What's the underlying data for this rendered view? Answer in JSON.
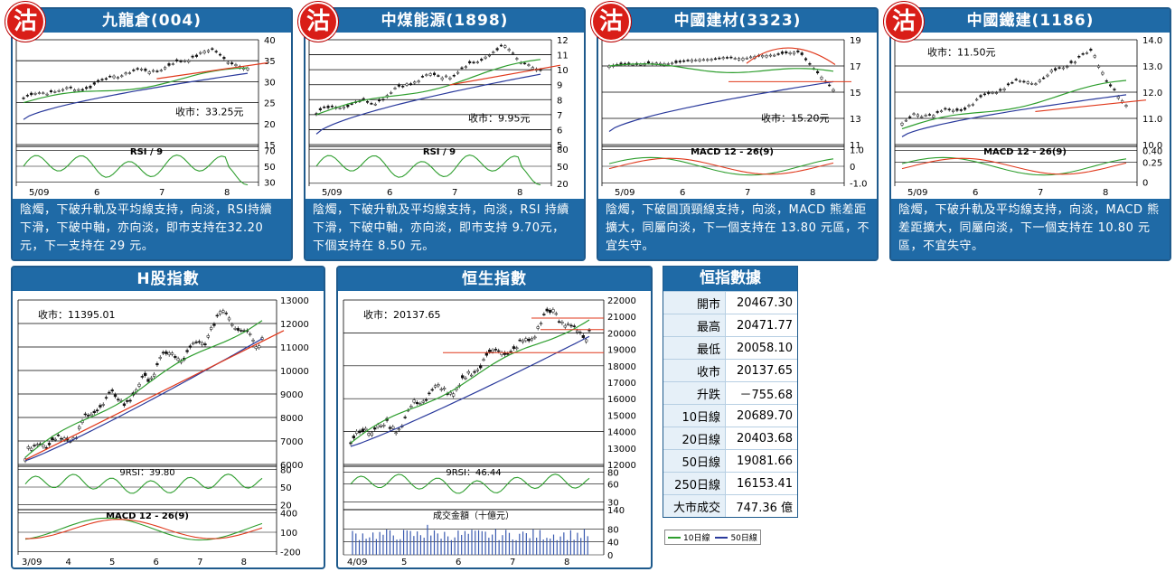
{
  "panels": [
    {
      "id": "p1",
      "title": "九龍倉(004)",
      "badge": "沽",
      "close_label": "收市：33.25元",
      "desc": "陰燭，下破升軌及平均線支持，向淡，RSI持續下滑，下破中軸，亦向淡，即市支持在32.20元，下一支持在 29 元。",
      "x_labels": [
        "5/09",
        "6",
        "7",
        "8"
      ],
      "price": {
        "ticks": [
          40,
          35,
          30,
          25,
          20,
          15
        ],
        "min": 15,
        "max": 40,
        "start": 26,
        "end": 33.25,
        "peak": 37,
        "ma10": [
          25,
          33
        ],
        "ma50": [
          21,
          32
        ],
        "trend": null
      },
      "ind": {
        "name": "RSI / 9",
        "ticks": [
          70,
          50,
          30
        ],
        "min": 25,
        "max": 75,
        "type": "rsi"
      }
    },
    {
      "id": "p2",
      "title": "中煤能源(1898)",
      "badge": "沽",
      "close_label": "收市：9.95元",
      "desc": "陰燭，下破升軌及平均線支持，向淡，RSI 持續下滑，下破中軸，亦向淡，即市支持 9.70元，下個支持在 8.50 元。",
      "x_labels": [
        "5/09",
        "6",
        "7",
        "8"
      ],
      "price": {
        "ticks": [
          12,
          11,
          10,
          9,
          8,
          7,
          6,
          5
        ],
        "min": 5,
        "max": 12,
        "start": 7,
        "end": 9.95,
        "peak": 11.3,
        "ma10": [
          7,
          10.6
        ],
        "ma50": [
          5.7,
          9.7
        ],
        "trend": null
      },
      "ind": {
        "name": "RSI / 9",
        "ticks": [
          80,
          50,
          20
        ],
        "min": 15,
        "max": 85,
        "type": "rsi"
      }
    },
    {
      "id": "p3",
      "title": "中國建材(3323)",
      "badge": "沽",
      "close_label": "收市：15.20元",
      "desc": "陰燭，下破圓頂頸線支持，向淡，MACD 熊差距擴大，同屬向淡，下一個支持在 13.80 元區，不宜失守。",
      "x_labels": [
        "5/09",
        "6",
        "7",
        "8"
      ],
      "price": {
        "ticks": [
          19,
          17,
          15,
          13,
          11
        ],
        "min": 11,
        "max": 19,
        "start": 17,
        "end": 15.2,
        "peak": 18,
        "ma10": [
          17,
          16.5
        ],
        "ma50": [
          12,
          15.8
        ],
        "trend": null
      },
      "ind": {
        "name": "MACD 12 - 26(9)",
        "ticks": [
          "1.0",
          "0",
          "-1.0"
        ],
        "min": -1.2,
        "max": 1.2,
        "type": "macd"
      }
    },
    {
      "id": "p4",
      "title": "中國鐵建(1186)",
      "badge": "沽",
      "close_label": "收市：11.50元",
      "desc": "陰燭，下破升軌及平均線支持，向淡，MACD 熊差距擴大，同屬向淡，下一個支持在 10.80 元區，不宜失守。",
      "x_labels": [
        "5/09",
        "6",
        "7",
        "8"
      ],
      "price": {
        "ticks": [
          "14.0",
          "13.0",
          "12.0",
          "11.0",
          "10.0"
        ],
        "min": 10,
        "max": 14,
        "start": 10.8,
        "end": 11.5,
        "peak": 13.4,
        "ma10": [
          10.6,
          12.4
        ],
        "ma50": [
          10.3,
          11.9
        ],
        "trend": null
      },
      "ind": {
        "name": "MACD 12 - 26(9)",
        "ticks": [
          "0.40",
          "0.25",
          "0"
        ],
        "min": -0.05,
        "max": 0.45,
        "type": "macd"
      }
    }
  ],
  "index_panels": [
    {
      "id": "h",
      "title": "H股指數",
      "close_label": "收市：11395.01",
      "x_labels": [
        "3/09",
        "4",
        "5",
        "6",
        "7",
        "8"
      ],
      "price": {
        "ticks": [
          13000,
          12000,
          11000,
          10000,
          9000,
          8000,
          7000,
          6000
        ],
        "min": 6000,
        "max": 13000,
        "start": 6300,
        "end": 11395,
        "peak": 12200
      },
      "ind1": {
        "name": "9RSI：39.80",
        "ticks": [
          80,
          50,
          20
        ],
        "min": 15,
        "max": 85
      },
      "ind2": {
        "name": "MACD 12 - 26(9)",
        "ticks": [
          400,
          100,
          -200
        ],
        "min": -250,
        "max": 450
      }
    },
    {
      "id": "hsi",
      "title": "恒生指數",
      "close_label": "收市：20137.65",
      "x_labels": [
        "4/09",
        "5",
        "6",
        "7",
        "8"
      ],
      "price": {
        "ticks": [
          22000,
          21000,
          20000,
          19000,
          18000,
          17000,
          16000,
          15000,
          14000,
          13000,
          12000
        ],
        "min": 12000,
        "max": 22000,
        "start": 13300,
        "end": 20137,
        "peak": 20900
      },
      "ind1": {
        "name": "9RSI：46.44",
        "ticks": [
          80,
          60,
          30
        ],
        "min": 20,
        "max": 90
      },
      "ind2": {
        "name": "成交金額（十億元）",
        "ticks": [
          140,
          80,
          40,
          0
        ],
        "min": 0,
        "max": 140
      }
    }
  ],
  "stats": {
    "title": "恒指數據",
    "rows": [
      {
        "k": "開市",
        "v": "20467.30"
      },
      {
        "k": "最高",
        "v": "20471.77"
      },
      {
        "k": "最低",
        "v": "20058.10"
      },
      {
        "k": "收市",
        "v": "20137.65"
      },
      {
        "k": "升跌",
        "v": "－755.68"
      },
      {
        "k": "10日線",
        "v": "20689.70"
      },
      {
        "k": "20日線",
        "v": "20403.68"
      },
      {
        "k": "50日線",
        "v": "19081.66"
      },
      {
        "k": "250日線",
        "v": "16153.41"
      },
      {
        "k": "大市成交",
        "v": "747.36 億"
      }
    ]
  },
  "legend": {
    "ma10": "10日線",
    "ma50": "50日線",
    "ma10_color": "#2e9e2e",
    "ma50_color": "#2a3a9c"
  },
  "colors": {
    "header": "#1f6aa6",
    "badge": "#d91e18",
    "trend": "#e0391c",
    "candle": "#111111"
  }
}
